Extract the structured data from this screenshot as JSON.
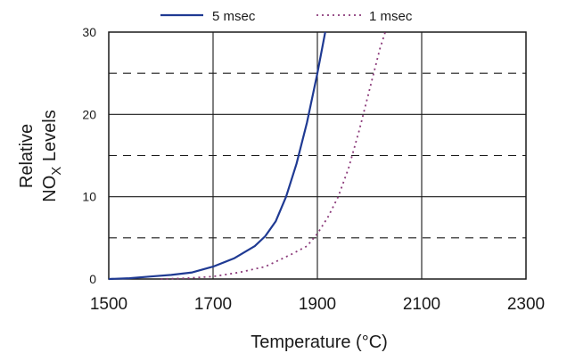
{
  "chart_data": {
    "type": "line",
    "title": "",
    "xlabel": "Temperature (°C)",
    "ylabel_line1": "Relative",
    "ylabel_line2_main": "NO",
    "ylabel_line2_sub": "X",
    "ylabel_line2_tail": " Levels",
    "xlim": [
      1500,
      2300
    ],
    "ylim": [
      0,
      30
    ],
    "x_ticks": [
      "1500",
      "1700",
      "1900",
      "2100",
      "2300"
    ],
    "y_ticks": [
      "0",
      "10",
      "20",
      "30"
    ],
    "grid": {
      "x_major": [
        1700,
        1900,
        2100
      ],
      "y_major": [
        10,
        20,
        30
      ],
      "y_minor_dashed": [
        5,
        15,
        25
      ]
    },
    "legend_position": "top",
    "series": [
      {
        "name": "5 msec",
        "color": "#1f3a93",
        "style": "solid",
        "x": [
          1500,
          1540,
          1580,
          1620,
          1660,
          1700,
          1740,
          1780,
          1800,
          1820,
          1840,
          1860,
          1880,
          1900,
          1915
        ],
        "y": [
          0,
          0.1,
          0.3,
          0.5,
          0.8,
          1.5,
          2.5,
          4.0,
          5.2,
          7.0,
          10.0,
          14.0,
          19.0,
          25.0,
          30.0
        ]
      },
      {
        "name": "1 msec",
        "color": "#8b3a7a",
        "style": "dotted",
        "x": [
          1600,
          1650,
          1700,
          1750,
          1800,
          1850,
          1880,
          1900,
          1920,
          1940,
          1960,
          1980,
          2000,
          2020,
          2030
        ],
        "y": [
          0,
          0.1,
          0.3,
          0.8,
          1.5,
          3.0,
          4.0,
          5.5,
          7.5,
          10.0,
          13.5,
          18.0,
          23.0,
          28.0,
          30.0
        ]
      }
    ]
  }
}
